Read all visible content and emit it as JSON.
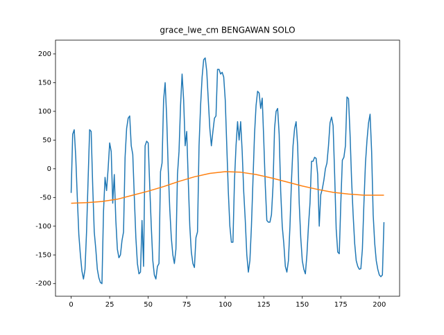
{
  "chart_data": {
    "type": "line",
    "title": "grace_lwe_cm BENGAWAN SOLO",
    "x": [
      0,
      1,
      2,
      3,
      4,
      5,
      6,
      7,
      8,
      9,
      10,
      11,
      12,
      13,
      14,
      15,
      16,
      17,
      18,
      19,
      20,
      21,
      22,
      23,
      24,
      25,
      26,
      27,
      28,
      29,
      30,
      31,
      32,
      33,
      34,
      35,
      36,
      37,
      38,
      39,
      40,
      41,
      42,
      43,
      44,
      45,
      46,
      47,
      48,
      49,
      50,
      51,
      52,
      53,
      54,
      55,
      56,
      57,
      58,
      59,
      60,
      61,
      62,
      63,
      64,
      65,
      66,
      67,
      68,
      69,
      70,
      71,
      72,
      73,
      74,
      75,
      76,
      77,
      78,
      79,
      80,
      81,
      82,
      83,
      84,
      85,
      86,
      87,
      88,
      89,
      90,
      91,
      92,
      93,
      94,
      95,
      96,
      97,
      98,
      99,
      100,
      101,
      102,
      103,
      104,
      105,
      106,
      107,
      108,
      109,
      110,
      111,
      112,
      113,
      114,
      115,
      116,
      117,
      118,
      119,
      120,
      121,
      122,
      123,
      124,
      125,
      126,
      127,
      128,
      129,
      130,
      131,
      132,
      133,
      134,
      135,
      136,
      137,
      138,
      139,
      140,
      141,
      142,
      143,
      144,
      145,
      146,
      147,
      148,
      149,
      150,
      151,
      152,
      153,
      154,
      155,
      156,
      157,
      158,
      159,
      160,
      161,
      162,
      163,
      164,
      165,
      166,
      167,
      168,
      169,
      170,
      171,
      172,
      173,
      174,
      175,
      176,
      177,
      178,
      179,
      180,
      181,
      182,
      183,
      184,
      185,
      186,
      187,
      188,
      189,
      190,
      191,
      192,
      193,
      194,
      195,
      196,
      197,
      198,
      199,
      200,
      201,
      202,
      203
    ],
    "series": [
      {
        "color": "#1f77b4",
        "values": [
          -42,
          60,
          68,
          20,
          -50,
          -115,
          -150,
          -178,
          -192,
          -175,
          -110,
          -20,
          68,
          65,
          -30,
          -110,
          -140,
          -175,
          -190,
          -198,
          -200,
          -75,
          -15,
          -38,
          0,
          45,
          30,
          -60,
          -10,
          -90,
          -140,
          -155,
          -150,
          -125,
          -110,
          20,
          70,
          88,
          92,
          40,
          25,
          -50,
          -120,
          -165,
          -183,
          -180,
          -90,
          -170,
          40,
          48,
          45,
          -30,
          -100,
          -160,
          -185,
          -192,
          -170,
          -165,
          -5,
          10,
          120,
          150,
          90,
          0,
          -70,
          -120,
          -150,
          -165,
          -140,
          -10,
          30,
          110,
          165,
          120,
          40,
          65,
          -20,
          -100,
          -145,
          -165,
          -172,
          -120,
          -110,
          40,
          110,
          160,
          190,
          193,
          170,
          120,
          70,
          40,
          65,
          88,
          92,
          173,
          173,
          165,
          168,
          160,
          120,
          40,
          -40,
          -100,
          -128,
          -128,
          -20,
          40,
          82,
          50,
          82,
          30,
          -40,
          -90,
          -150,
          -180,
          -160,
          -100,
          -20,
          60,
          110,
          135,
          132,
          105,
          123,
          50,
          -30,
          -90,
          -93,
          -93,
          -80,
          -30,
          70,
          100,
          105,
          60,
          -40,
          -100,
          -130,
          -170,
          -180,
          -160,
          -100,
          -20,
          40,
          70,
          82,
          40,
          -60,
          -120,
          -160,
          -175,
          -183,
          -150,
          -100,
          -60,
          13,
          13,
          20,
          18,
          -10,
          -100,
          -45,
          -35,
          -20,
          0,
          10,
          40,
          80,
          90,
          75,
          -10,
          -105,
          -145,
          -148,
          -60,
          15,
          20,
          40,
          125,
          122,
          60,
          -20,
          -80,
          -130,
          -160,
          -170,
          -175,
          -174,
          -140,
          -60,
          10,
          50,
          80,
          95,
          30,
          -80,
          -130,
          -160,
          -175,
          -185,
          -188,
          -185,
          -93
        ]
      },
      {
        "color": "#ff7f0e",
        "x": [
          0,
          10,
          20,
          30,
          40,
          50,
          60,
          70,
          80,
          90,
          100,
          110,
          120,
          130,
          140,
          150,
          160,
          170,
          180,
          190,
          200,
          203
        ],
        "values": [
          -60,
          -59,
          -57,
          -53,
          -46,
          -39,
          -31,
          -22,
          -14,
          -8,
          -5,
          -6,
          -10,
          -16,
          -23,
          -30,
          -36,
          -41,
          -44,
          -46,
          -46,
          -46
        ]
      }
    ],
    "xlim": [
      -10.15,
      213.15
    ],
    "xticks": [
      0,
      25,
      50,
      75,
      100,
      125,
      150,
      175,
      200
    ],
    "ylim": [
      -222,
      224
    ],
    "yticks": [
      -200,
      -150,
      -100,
      -50,
      0,
      50,
      100,
      150,
      200
    ]
  }
}
